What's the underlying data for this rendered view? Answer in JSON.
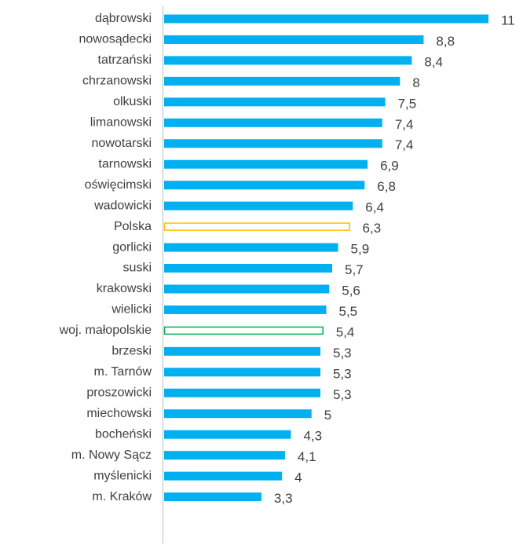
{
  "chart_data": {
    "type": "hbar",
    "categories": [
      "dąbrowski",
      "nowosądecki",
      "tatrzański",
      "chrzanowski",
      "olkuski",
      "limanowski",
      "nowotarski",
      "tarnowski",
      "oświęcimski",
      "wadowicki",
      "Polska",
      "gorlicki",
      "suski",
      "krakowski",
      "wielicki",
      "woj. małopolskie",
      "brzeski",
      "m. Tarnów",
      "proszowicki",
      "miechowski",
      "bocheński",
      "m. Nowy Sącz",
      "myślenicki",
      "m. Kraków"
    ],
    "values": [
      11,
      8.8,
      8.4,
      8,
      7.5,
      7.4,
      7.4,
      6.9,
      6.8,
      6.4,
      6.3,
      5.9,
      5.7,
      5.6,
      5.5,
      5.4,
      5.3,
      5.3,
      5.3,
      5,
      4.3,
      4.1,
      4,
      3.3
    ],
    "value_labels": [
      "11",
      "8,8",
      "8,4",
      "8",
      "7,5",
      "7,4",
      "7,4",
      "6,9",
      "6,8",
      "6,4",
      "6,3",
      "5,9",
      "5,7",
      "5,6",
      "5,5",
      "5,4",
      "5,3",
      "5,3",
      "5,3",
      "5",
      "4,3",
      "4,1",
      "4",
      "3,3"
    ],
    "colors": [
      "#00b0f0",
      "#00b0f0",
      "#00b0f0",
      "#00b0f0",
      "#00b0f0",
      "#00b0f0",
      "#00b0f0",
      "#00b0f0",
      "#00b0f0",
      "#00b0f0",
      "#ffc000",
      "#00b0f0",
      "#00b0f0",
      "#00b0f0",
      "#00b0f0",
      "#00b050",
      "#00b0f0",
      "#00b0f0",
      "#00b0f0",
      "#00b0f0",
      "#00b0f0",
      "#00b0f0",
      "#00b0f0",
      "#00b0f0"
    ],
    "bar_style": [
      "fill",
      "fill",
      "fill",
      "fill",
      "fill",
      "fill",
      "fill",
      "fill",
      "fill",
      "fill",
      "outline",
      "fill",
      "fill",
      "fill",
      "fill",
      "outline",
      "fill",
      "fill",
      "fill",
      "fill",
      "fill",
      "fill",
      "fill",
      "fill"
    ],
    "xlim": [
      0,
      11
    ]
  }
}
